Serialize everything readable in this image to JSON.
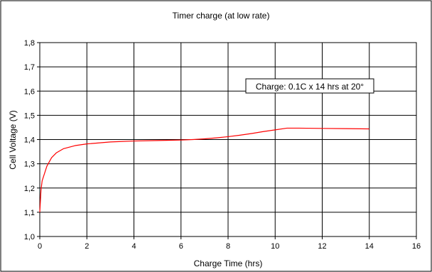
{
  "chart_data": {
    "type": "line",
    "title": "Timer charge (at low rate)",
    "xlabel": "Charge Time (hrs)",
    "ylabel": "Cell Voltage (V)",
    "xlim": [
      0,
      16
    ],
    "ylim": [
      1.0,
      1.8
    ],
    "xticks": [
      "0",
      "2",
      "4",
      "6",
      "8",
      "10",
      "12",
      "14",
      "16"
    ],
    "yticks": [
      "1,0",
      "1,1",
      "1,2",
      "1,3",
      "1,4",
      "1,5",
      "1,6",
      "1,7",
      "1,8"
    ],
    "grid": true,
    "line_color": "#ff0000",
    "annotation": "Charge: 0.1C x 14 hrs at 20°",
    "series": [
      {
        "x": [
          0,
          0.05,
          0.1,
          0.2,
          0.3,
          0.5,
          0.7,
          1.0,
          1.5,
          2.0,
          3.0,
          4.0,
          5.0,
          6.0,
          6.5,
          7.0,
          7.5,
          8.0,
          8.5,
          9.0,
          9.5,
          10.0,
          10.5,
          11.0,
          12.0,
          13.0,
          14.0
        ],
        "y": [
          1.1,
          1.19,
          1.23,
          1.26,
          1.29,
          1.325,
          1.345,
          1.362,
          1.375,
          1.382,
          1.39,
          1.394,
          1.396,
          1.398,
          1.4,
          1.403,
          1.407,
          1.412,
          1.418,
          1.425,
          1.433,
          1.44,
          1.447,
          1.447,
          1.446,
          1.445,
          1.444
        ]
      }
    ]
  }
}
